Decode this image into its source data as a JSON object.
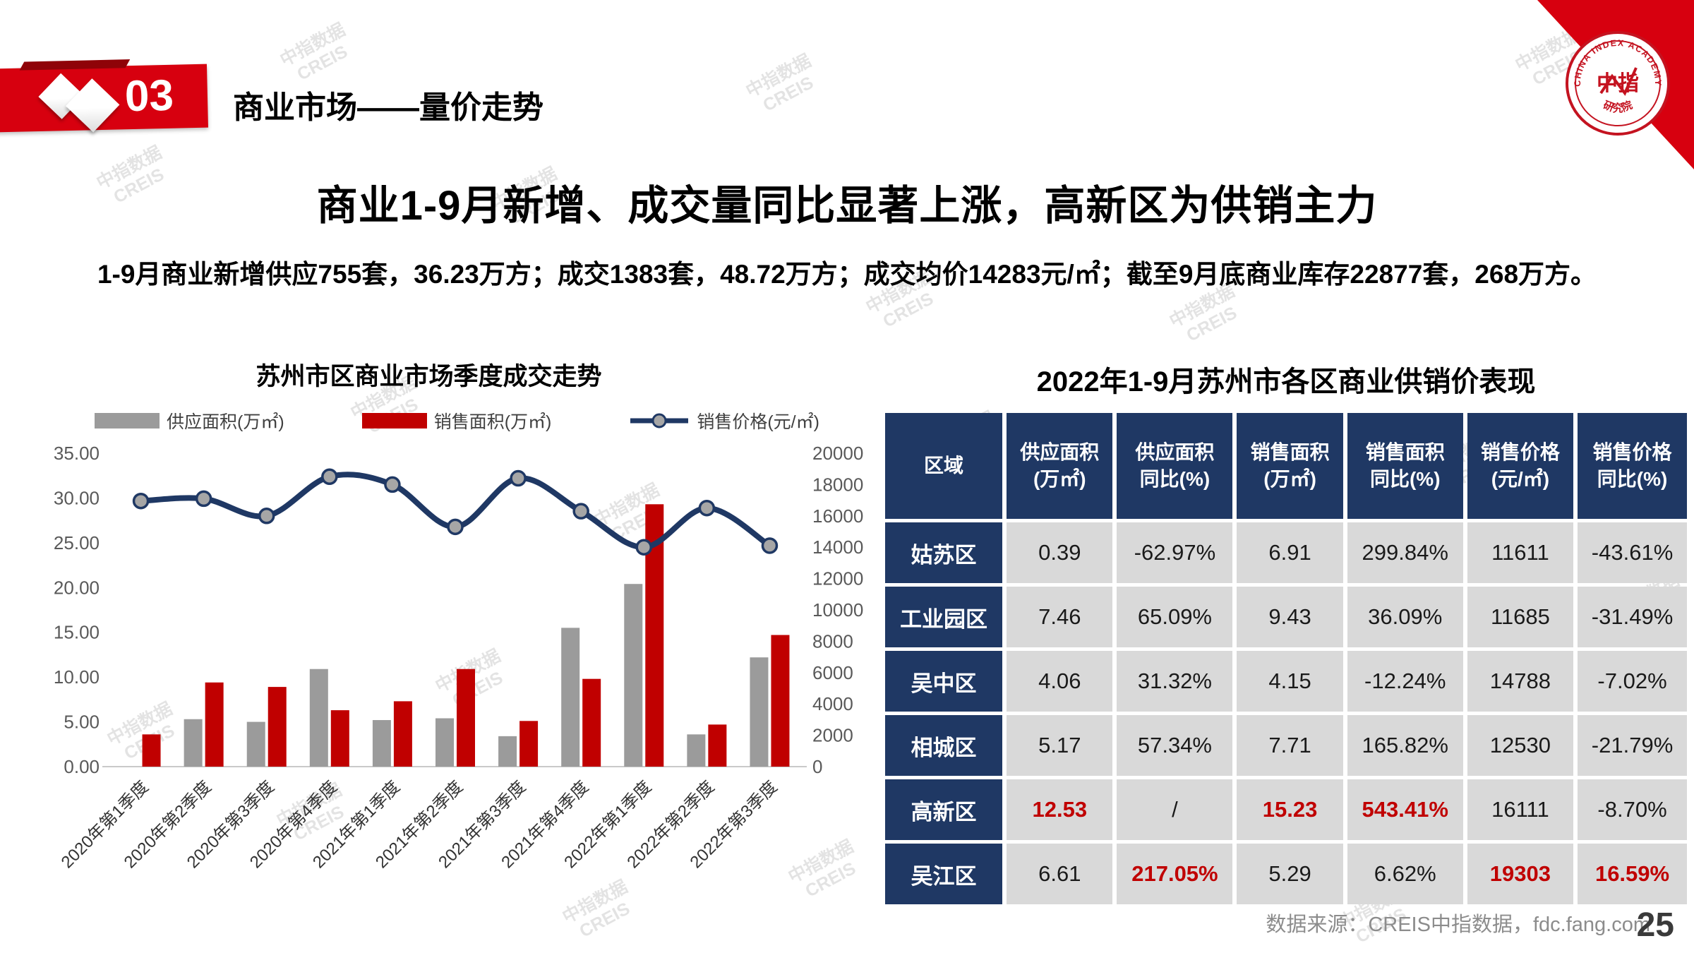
{
  "header": {
    "badge_number": "03",
    "section_title": "商业市场——量价走势"
  },
  "logo": {
    "arc_text": "CHINA INDEX ACADEMY",
    "center_text": "中指",
    "bottom_text": "研究院"
  },
  "watermark": {
    "text": "中指数据\nCREIS"
  },
  "main_title": "商业1-9月新增、成交量同比显著上涨，高新区为供销主力",
  "subtitle": "1-9月商业新增供应755套，36.23万方；成交1383套，48.72万方；成交均价14283元/㎡；截至9月底商业库存22877套，268万方。",
  "chart_data": {
    "type": "combo-bar-line",
    "title": "苏州市区商业市场季度成交走势",
    "categories": [
      "2020年第1季度",
      "2020年第2季度",
      "2020年第3季度",
      "2020年第4季度",
      "2021年第1季度",
      "2021年第2季度",
      "2021年第3季度",
      "2021年第4季度",
      "2022年第1季度",
      "2022年第2季度",
      "2022年第3季度"
    ],
    "series": [
      {
        "name": "供应面积(万㎡)",
        "type": "bar",
        "color": "#9B9B9B",
        "axis": "left",
        "values": [
          null,
          5.3,
          5.0,
          10.9,
          5.2,
          5.4,
          3.4,
          15.5,
          20.4,
          3.6,
          12.2
        ]
      },
      {
        "name": "销售面积(万㎡)",
        "type": "bar",
        "color": "#C00000",
        "axis": "left",
        "values": [
          3.6,
          9.4,
          8.9,
          6.3,
          7.3,
          10.9,
          5.1,
          9.8,
          29.3,
          4.7,
          14.7
        ]
      },
      {
        "name": "销售价格(元/㎡)",
        "type": "line",
        "color": "#1F3864",
        "axis": "right",
        "values": [
          16950,
          17100,
          16000,
          18500,
          18000,
          15300,
          18400,
          16300,
          14000,
          16500,
          14100
        ]
      }
    ],
    "left_axis": {
      "min": 0,
      "max": 35,
      "step": 5,
      "decimals": 2
    },
    "right_axis": {
      "min": 0,
      "max": 20000,
      "step": 2000
    },
    "grid": false,
    "legend_position": "top"
  },
  "table": {
    "title": "2022年1-9月苏州市各区商业供销价表现",
    "columns": [
      "区域",
      "供应面积\n(万㎡)",
      "供应面积\n同比(%)",
      "销售面积\n(万㎡)",
      "销售面积\n同比(%)",
      "销售价格\n(元/㎡)",
      "销售价格\n同比(%)"
    ],
    "rows": [
      {
        "region": "姑苏区",
        "values": [
          "0.39",
          "-62.97%",
          "6.91",
          "299.84%",
          "11611",
          "-43.61%"
        ],
        "red": []
      },
      {
        "region": "工业园区",
        "values": [
          "7.46",
          "65.09%",
          "9.43",
          "36.09%",
          "11685",
          "-31.49%"
        ],
        "red": []
      },
      {
        "region": "吴中区",
        "values": [
          "4.06",
          "31.32%",
          "4.15",
          "-12.24%",
          "14788",
          "-7.02%"
        ],
        "red": []
      },
      {
        "region": "相城区",
        "values": [
          "5.17",
          "57.34%",
          "7.71",
          "165.82%",
          "12530",
          "-21.79%"
        ],
        "red": []
      },
      {
        "region": "高新区",
        "values": [
          "12.53",
          "/",
          "15.23",
          "543.41%",
          "16111",
          "-8.70%"
        ],
        "red": [
          0,
          2,
          3
        ]
      },
      {
        "region": "吴江区",
        "values": [
          "6.61",
          "217.05%",
          "5.29",
          "6.62%",
          "19303",
          "16.59%"
        ],
        "red": [
          1,
          4,
          5
        ]
      }
    ]
  },
  "footer": {
    "source": "数据来源：CREIS中指数据，fdc.fang.com",
    "page_number": "25"
  },
  "colors": {
    "accent_red": "#D7000F",
    "bar_red": "#C00000",
    "bar_gray": "#9B9B9B",
    "line_navy": "#1F3864",
    "table_navy": "#1F3864",
    "cell_gray": "#D9D9D9"
  }
}
